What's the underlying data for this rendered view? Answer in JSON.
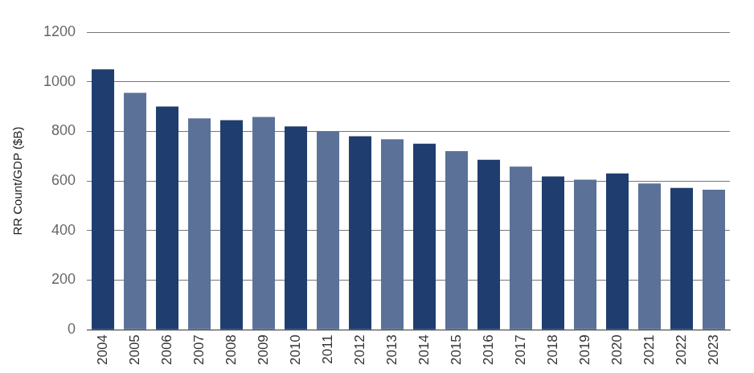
{
  "chart_data": {
    "type": "bar",
    "y_label": "RR Count/GDP ($B)",
    "categories": [
      "2004",
      "2005",
      "2006",
      "2007",
      "2008",
      "2009",
      "2010",
      "2011",
      "2012",
      "2013",
      "2014",
      "2015",
      "2016",
      "2017",
      "2018",
      "2019",
      "2020",
      "2021",
      "2022",
      "2023"
    ],
    "values": [
      1050,
      955,
      900,
      852,
      845,
      858,
      820,
      800,
      780,
      768,
      750,
      720,
      685,
      658,
      618,
      605,
      630,
      590,
      572,
      565
    ],
    "colors": [
      "#1f3d6e",
      "#5b7198",
      "#1f3d6e",
      "#5b7198",
      "#1f3d6e",
      "#5b7198",
      "#1f3d6e",
      "#5b7198",
      "#1f3d6e",
      "#5b7198",
      "#1f3d6e",
      "#5b7198",
      "#1f3d6e",
      "#5b7198",
      "#1f3d6e",
      "#5b7198",
      "#1f3d6e",
      "#5b7198",
      "#1f3d6e",
      "#5b7198"
    ],
    "ylim": [
      0,
      1200
    ],
    "yticks": [
      0,
      200,
      400,
      600,
      800,
      1000,
      1200
    ],
    "grid": true
  }
}
